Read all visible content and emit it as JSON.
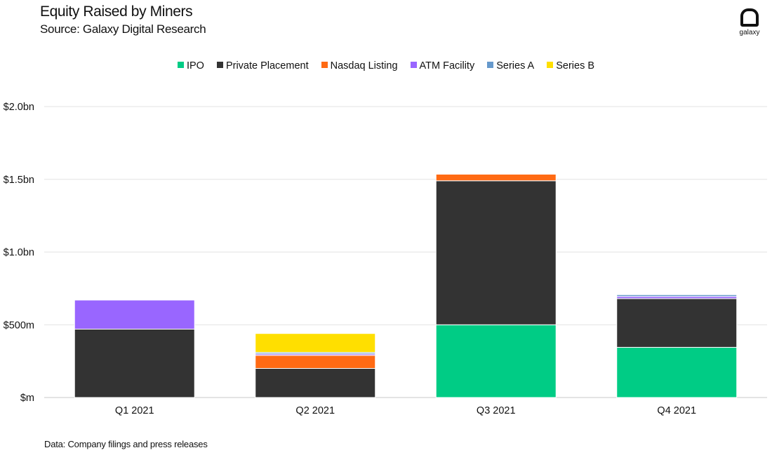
{
  "header": {
    "title": "Equity Raised by Miners",
    "subtitle": "Source: Galaxy Digital Research",
    "logo_text": "galaxy"
  },
  "footer": {
    "note": "Data: Company filings and press releases"
  },
  "chart_data": {
    "type": "bar",
    "stacked": true,
    "title": "Equity Raised by Miners",
    "subtitle": "Source: Galaxy Digital Research",
    "xlabel": "",
    "ylabel": "",
    "categories": [
      "Q1 2021",
      "Q2 2021",
      "Q3 2021",
      "Q4 2021"
    ],
    "ylim": [
      0,
      2000
    ],
    "yunit": "$m",
    "yticks": [
      0,
      500,
      1000,
      1500,
      2000
    ],
    "ytick_labels": [
      "$m",
      "$500m",
      "$1.0bn",
      "$1.5bn",
      "$2.0bn"
    ],
    "grid": true,
    "legend_position": "top-center",
    "series": [
      {
        "name": "IPO",
        "color": "#00cc85",
        "values": [
          0,
          0,
          500,
          345
        ]
      },
      {
        "name": "Private Placement",
        "color": "#333333",
        "values": [
          470,
          200,
          990,
          335
        ]
      },
      {
        "name": "Nasdaq Listing",
        "color": "#ff6a13",
        "values": [
          0,
          90,
          45,
          0
        ]
      },
      {
        "name": "ATM Facility",
        "color": "#9966ff",
        "values": [
          200,
          10,
          0,
          15
        ]
      },
      {
        "name": "Series A",
        "color": "#6699cc",
        "values": [
          0,
          10,
          0,
          12
        ]
      },
      {
        "name": "Series B",
        "color": "#ffdf00",
        "values": [
          0,
          130,
          0,
          0
        ]
      }
    ]
  }
}
